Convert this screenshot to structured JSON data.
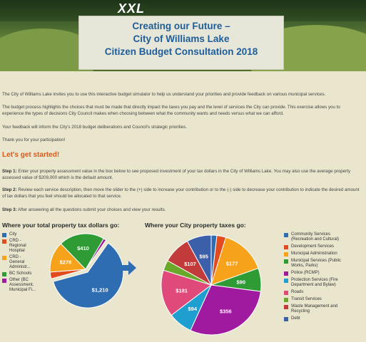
{
  "banner": {
    "logo": "XXL"
  },
  "header": {
    "line1": "Creating our Future –",
    "line2": "City of Williams Lake",
    "line3": "Citizen Budget Consultation 2018"
  },
  "intro": {
    "p1": "The City of Williams Lake invites you to use this interactive budget simulator to help us understand your priorities and provide feedback on various municipal services.",
    "p2": "The budget process highlights the choices that must be made that directly impact the taxes you pay and the level of services the City can provide. This exercise allows you to experience the types of decisions City Council makes when choosing between what the community wants and needs versus what we can afford.",
    "p3": "Your feedback will inform the City's 2018 budget deliberations and Council's strategic priorities.",
    "p4": "Thank you for your participation!"
  },
  "getstarted": "Let's get started!",
  "steps": [
    {
      "label": "Step 1:",
      "text": " Enter your property assessment value in the box below to see proposed investment of your tax dollars in the City of Williams Lake. You may also use the average property assessed value of $209,000 which is the default amount."
    },
    {
      "label": "Step 2:",
      "text": " Review each service description, then move the slider to the (+) side to increase your contribution or to the (-) side to decrease your contribution to indicate the desired amount of tax dollars that you feel should be allocated to that service."
    },
    {
      "label": "Step 3:",
      "text": " After answering all the questions submit your choices and view your results."
    }
  ],
  "chart_data": [
    {
      "type": "pie",
      "title": "Where your total property tax dollars go:",
      "categories": [
        "City",
        "CRD - Regional Hospital",
        "CRD - General Administr...",
        "BC Schools",
        "Other (BC Assessment, Municipal Fi..."
      ],
      "legend_lines": [
        [
          "City"
        ],
        [
          "CRD -",
          "Regional",
          "Hospital"
        ],
        [
          "CRD -",
          "General",
          "Administr..."
        ],
        [
          "BC Schools"
        ],
        [
          "Other (BC",
          "Assessment,",
          "Municipal Fi..."
        ]
      ],
      "values": [
        1210,
        60,
        278,
        410,
        25
      ],
      "data_labels": [
        "$1,210",
        "",
        "$278",
        "$410",
        ""
      ],
      "colors": [
        "#2f6db3",
        "#e14b1f",
        "#f6a21a",
        "#2e9b35",
        "#a01aa0"
      ],
      "legend": "right",
      "exploded": "City"
    },
    {
      "type": "pie",
      "title": "Where your City property taxes go:",
      "categories": [
        "Community Services (Recreation and Cultural)",
        "Development Services",
        "Municipal Administration",
        "Municipal Services (Public Works, Parks)",
        "Police (RCMP)",
        "Protection Services (Fire Department and Bylaw)",
        "Roads",
        "Transit Services",
        "Waste Management and Recycling",
        "Debt"
      ],
      "legend_lines": [
        [
          "Community Services",
          "(Recreation and Cultural)"
        ],
        [
          "Development Services"
        ],
        [
          "Municipal Administration"
        ],
        [
          "Municipal Services (Public",
          "Works, Parks)"
        ],
        [
          "Police (RCMP)"
        ],
        [
          "Protection Services (Fire",
          "Department and Bylaw)"
        ],
        [
          "Roads"
        ],
        [
          "Transit Services"
        ],
        [
          "Waste Management and",
          "Recycling"
        ],
        [
          "Debt"
        ]
      ],
      "values": [
        22,
        35,
        177,
        90,
        356,
        94,
        181,
        40,
        107,
        95
      ],
      "data_labels": [
        "",
        "",
        "$177",
        "$90",
        "$356",
        "$94",
        "$181",
        "",
        "$107",
        "$95"
      ],
      "colors": [
        "#2f6db3",
        "#e14b1f",
        "#f6a21a",
        "#2e9b35",
        "#a01aa0",
        "#1f9fd0",
        "#e04a7a",
        "#6aa82a",
        "#c23a3a",
        "#3b5fa8"
      ],
      "legend": "right"
    }
  ]
}
